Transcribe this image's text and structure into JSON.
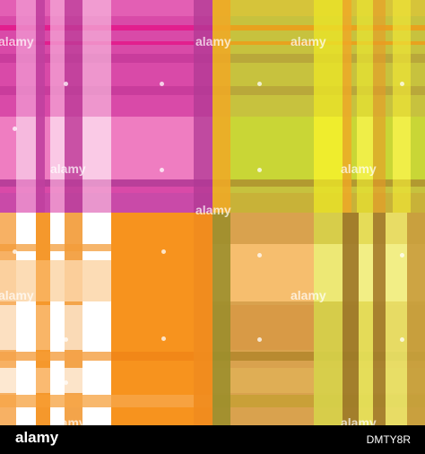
{
  "image": {
    "watermark_text": "alamy",
    "footer_logo": "alamy",
    "footer_code": "DMTY8R",
    "palette": {
      "magenta": "#d94aa8",
      "pink": "#ee7bbf",
      "lime": "#c8d43a",
      "yellow": "#e8e61e",
      "orange": "#f7931e",
      "peach": "#f9c082",
      "olive": "#9c8e2c",
      "white": "#ffffff"
    },
    "quadrants": [
      {
        "name": "top-left",
        "base": "#d94aa8"
      },
      {
        "name": "top-right",
        "base": "#c8d43a"
      },
      {
        "name": "bottom-left",
        "base": "#f7931e"
      },
      {
        "name": "bottom-right",
        "base": "#d8a050"
      }
    ]
  }
}
